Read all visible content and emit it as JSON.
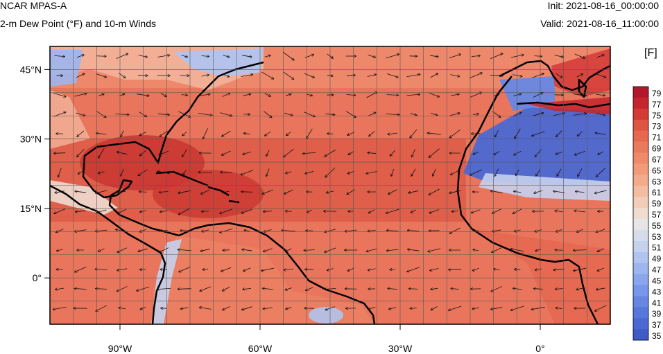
{
  "header": {
    "model": "NCAR MPAS-A",
    "field": "2-m Dew Point (°F) and 10-m Winds",
    "init": "Init: 2021-08-16_00:00:00",
    "valid": "Valid: 2021-08-16_11:00:00"
  },
  "map": {
    "lon_range": [
      -105,
      15
    ],
    "lat_range": [
      -10,
      50
    ],
    "lon_ticks": [
      {
        "lon": -90,
        "label": "90°W"
      },
      {
        "lon": -60,
        "label": "60°W"
      },
      {
        "lon": -30,
        "label": "30°W"
      },
      {
        "lon": 0,
        "label": "0°"
      }
    ],
    "lat_ticks": [
      {
        "lat": 45,
        "label": "45°N"
      },
      {
        "lat": 30,
        "label": "30°N"
      },
      {
        "lat": 15,
        "label": "15°N"
      },
      {
        "lat": 0,
        "label": "0°"
      }
    ],
    "grid_spacing_deg": 5
  },
  "colorbar": {
    "unit": "[F]",
    "labels": [
      "79",
      "77",
      "75",
      "73",
      "71",
      "69",
      "67",
      "65",
      "63",
      "61",
      "59",
      "57",
      "55",
      "53",
      "51",
      "49",
      "47",
      "45",
      "43",
      "41",
      "39",
      "37",
      "35"
    ],
    "colors": [
      "#b2182b",
      "#c5262d",
      "#d43a36",
      "#de5543",
      "#e5684f",
      "#ea7a5d",
      "#ee8a6a",
      "#f09b7a",
      "#f2ac8c",
      "#f3bda1",
      "#f2cdb8",
      "#eeddd0",
      "#e6e6e6",
      "#d7dcea",
      "#c5d2ee",
      "#b1c4f0",
      "#9db6f0",
      "#8aa7ee",
      "#7797ea",
      "#6787e3",
      "#5877db",
      "#4c68d2",
      "#405ac8"
    ]
  }
}
